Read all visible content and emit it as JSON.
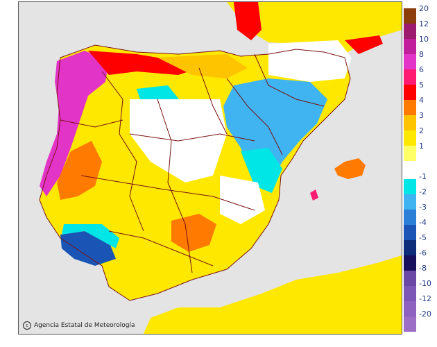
{
  "credit": {
    "icon": "copyright-circle-icon",
    "text": "Agencia Estatal de Meteorología"
  },
  "legend": {
    "labels": [
      "20",
      "12",
      "10",
      "8",
      "6",
      "5",
      "4",
      "3",
      "2",
      "1",
      "-1",
      "-2",
      "-3",
      "-4",
      "-5",
      "-6",
      "-8",
      "-10",
      "-12",
      "-20"
    ],
    "warm_colors": [
      "#8b3d0c",
      "#9c1b6e",
      "#c11e9c",
      "#e334c8",
      "#ff1a72",
      "#ff0000",
      "#ff7a00",
      "#ffc400",
      "#ffe800",
      "#ffff66"
    ],
    "cold_colors": [
      "#00e5e5",
      "#3fb4f0",
      "#2b7fd6",
      "#1a55b5",
      "#0d2c7a",
      "#160f5e",
      "#6a48a6",
      "#7d57b5",
      "#8d63bf",
      "#9c6ec5"
    ],
    "neutral_color": "#ffffff"
  },
  "colors": {
    "sea": "#e4e4e4",
    "land_warm": "#ffe800",
    "land_orange": "#ffc400",
    "border": "#7a1010"
  }
}
